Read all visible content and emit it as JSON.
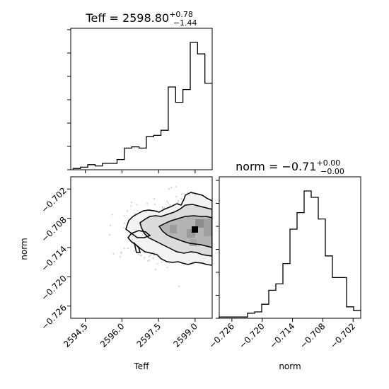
{
  "chart_data": {
    "type": "corner",
    "parameters": [
      "Teff",
      "norm"
    ],
    "panels": [
      {
        "name": "Teff marginal",
        "type": "histogram",
        "title": {
          "prefix": "Teff = ",
          "value": "2598.80",
          "upper": "+0.78",
          "lower": "−1.44"
        },
        "x_range": [
          2593.9,
          2599.7
        ],
        "bin_edges": [
          2594.0,
          2594.3,
          2594.6,
          2594.9,
          2595.2,
          2595.5,
          2595.8,
          2596.1,
          2596.4,
          2596.7,
          2597.0,
          2597.3,
          2597.6,
          2597.9,
          2598.2,
          2598.5,
          2598.8,
          2599.1,
          2599.4,
          2599.7
        ],
        "counts": [
          1,
          2,
          4,
          3,
          5,
          5,
          8,
          17,
          18,
          17,
          26,
          27,
          31,
          65,
          53,
          63,
          100,
          91,
          68
        ]
      },
      {
        "name": "norm marginal",
        "type": "histogram",
        "title": {
          "prefix": "norm = ",
          "value": "−0.71",
          "upper": "+0.00",
          "lower": "−0.00"
        },
        "x_range": [
          -0.7285,
          -0.7005
        ],
        "bin_edges": [
          -0.7285,
          -0.7271,
          -0.7257,
          -0.7243,
          -0.7229,
          -0.7215,
          -0.7201,
          -0.7187,
          -0.7173,
          -0.7159,
          -0.7145,
          -0.7131,
          -0.7117,
          -0.7103,
          -0.7089,
          -0.7075,
          -0.7061,
          -0.7047,
          -0.7033,
          -0.7019,
          -0.7005
        ],
        "counts": [
          1,
          1,
          1,
          1,
          4,
          5,
          11,
          22,
          27,
          43,
          70,
          83,
          100,
          95,
          78,
          49,
          32,
          32,
          9,
          6
        ],
        "x_ticks": [
          -0.726,
          -0.72,
          -0.714,
          -0.708,
          -0.702
        ],
        "x_tick_labels": [
          "−0.726",
          "−0.720",
          "−0.714",
          "−0.708",
          "−0.702"
        ],
        "xlabel": "norm"
      },
      {
        "name": "Teff vs norm 2D",
        "type": "contour",
        "x_range": [
          2593.9,
          2599.7
        ],
        "y_range": [
          -0.7285,
          -0.6995
        ],
        "x_ticks": [
          2594.5,
          2596.0,
          2597.5,
          2599.0
        ],
        "x_tick_labels": [
          "2594.5",
          "2596.0",
          "2597.5",
          "2599.0"
        ],
        "y_ticks": [
          -0.702,
          -0.708,
          -0.714,
          -0.72,
          -0.726
        ],
        "y_tick_labels": [
          "−0.702",
          "−0.708",
          "−0.714",
          "−0.720",
          "−0.726"
        ],
        "xlabel": "Teff",
        "ylabel": "norm",
        "peak": [
          2599.0,
          -0.7095
        ]
      }
    ]
  }
}
